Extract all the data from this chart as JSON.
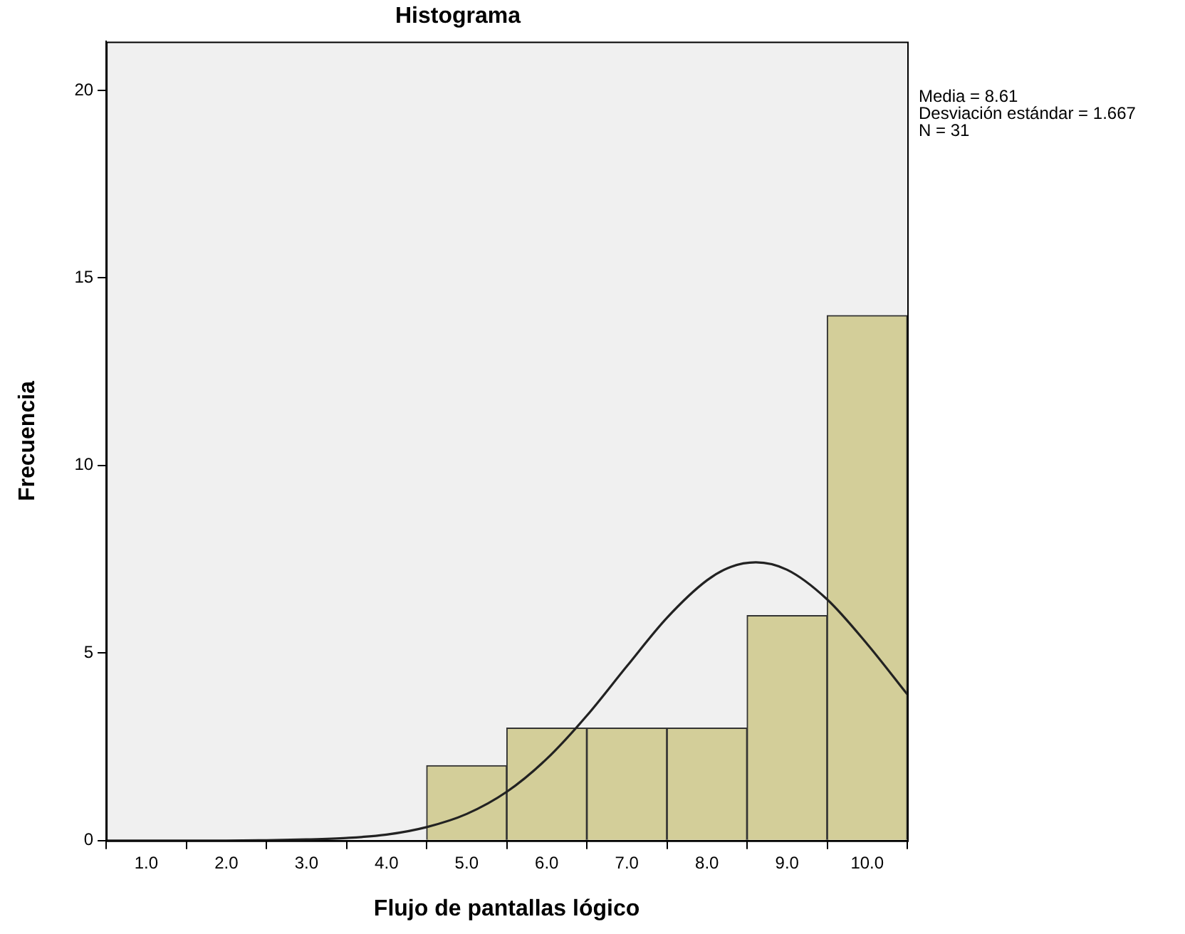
{
  "chart_data": {
    "type": "histogram",
    "title": "Histograma",
    "xlabel": "Flujo de pantallas lógico",
    "ylabel": "Frecuencia",
    "bins": [
      4.5,
      5.5,
      6.5,
      7.5,
      8.5,
      9.5,
      10.5
    ],
    "values": [
      2,
      3,
      3,
      3,
      6,
      14
    ],
    "color": "#d3ce99",
    "series": [
      {
        "type": "line",
        "color": "#222222",
        "x": [
          0.5,
          1,
          1.5,
          2,
          2.5,
          3,
          3.5,
          4,
          4.5,
          5,
          5.5,
          6,
          6.5,
          7,
          7.5,
          8,
          8.3,
          8.61,
          9,
          9.5,
          10,
          10.5
        ],
        "values": [
          0,
          0,
          0,
          0,
          0.01,
          0.03,
          0.07,
          0.16,
          0.36,
          0.71,
          1.3,
          2.18,
          3.33,
          4.65,
          5.94,
          6.94,
          7.3,
          7.42,
          7.22,
          6.43,
          5.24,
          3.9
        ]
      }
    ],
    "marker": "none",
    "xlim": [
      0.5,
      10.5
    ],
    "xticks": [
      {
        "value": 1,
        "label": "1.0"
      },
      {
        "value": 2,
        "label": "2.0"
      },
      {
        "value": 3,
        "label": "3.0"
      },
      {
        "value": 4,
        "label": "4.0"
      },
      {
        "value": 5,
        "label": "5.0"
      },
      {
        "value": 6,
        "label": "6.0"
      },
      {
        "value": 7,
        "label": "7.0"
      },
      {
        "value": 8,
        "label": "8.0"
      },
      {
        "value": 9,
        "label": "9.0"
      },
      {
        "value": 10,
        "label": "10.0"
      }
    ],
    "ylim": [
      0,
      21.3
    ],
    "yticks": [
      0,
      5,
      10,
      15,
      20
    ],
    "annotations": [
      "Media = 8.61",
      "Desviación estándar = 1.667",
      "N = 31"
    ]
  }
}
